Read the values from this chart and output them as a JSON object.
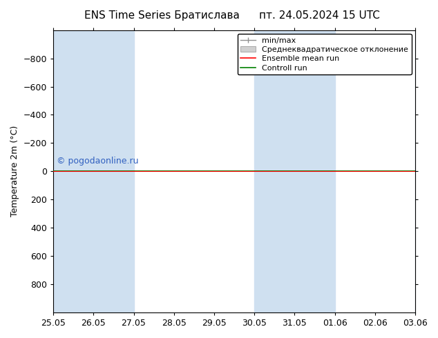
{
  "title_left": "ENS Time Series Братислава",
  "title_right": "пт. 24.05.2024 15 UTC",
  "ylabel": "Temperature 2m (°C)",
  "ylim": [
    1000,
    -1000
  ],
  "yticks": [
    800,
    600,
    400,
    200,
    0,
    -200,
    -400,
    -600,
    -800
  ],
  "watermark": "© pogodaonline.ru",
  "bg_color": "#ffffff",
  "plot_bg": "#ffffff",
  "band_color": "#cfe0f0",
  "green_line_color": "#008000",
  "red_line_color": "#ff0000",
  "x_tick_labels": [
    "25.05",
    "26.05",
    "27.05",
    "28.05",
    "29.05",
    "30.05",
    "31.05",
    "01.06",
    "02.06",
    "03.06"
  ],
  "legend_labels": [
    "min/max",
    "Среднеквадратическое отклонение",
    "Ensemble mean run",
    "Controll run"
  ],
  "font_size_title": 11,
  "font_size_labels": 9,
  "font_size_ticks": 9,
  "font_size_legend": 8,
  "font_size_watermark": 9,
  "watermark_color": "#3060c0",
  "band_positions": [
    0,
    1,
    5,
    6,
    9
  ],
  "num_days": 9
}
